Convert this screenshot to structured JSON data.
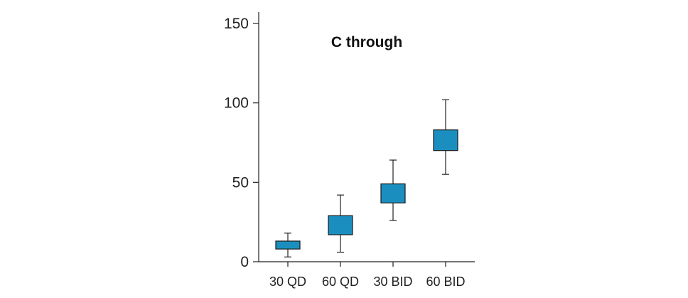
{
  "chart_data": {
    "type": "box",
    "title": "C through",
    "xlabel": "",
    "ylabel": "",
    "ylim": [
      0,
      150
    ],
    "yticks": [
      0,
      50,
      100,
      150
    ],
    "categories": [
      "30 QD",
      "60 QD",
      "30 BID",
      "60 BID"
    ],
    "boxes": [
      {
        "category": "30 QD",
        "whisker_low": 3,
        "q1": 8,
        "q3": 13,
        "whisker_high": 18
      },
      {
        "category": "60 QD",
        "whisker_low": 6,
        "q1": 17,
        "q3": 29,
        "whisker_high": 42
      },
      {
        "category": "30 BID",
        "whisker_low": 26,
        "q1": 37,
        "q3": 49,
        "whisker_high": 64
      },
      {
        "category": "60 BID",
        "whisker_low": 55,
        "q1": 70,
        "q3": 83,
        "whisker_high": 102
      }
    ],
    "box_color": "#1a8fbf",
    "grid": false,
    "legend": "none"
  }
}
